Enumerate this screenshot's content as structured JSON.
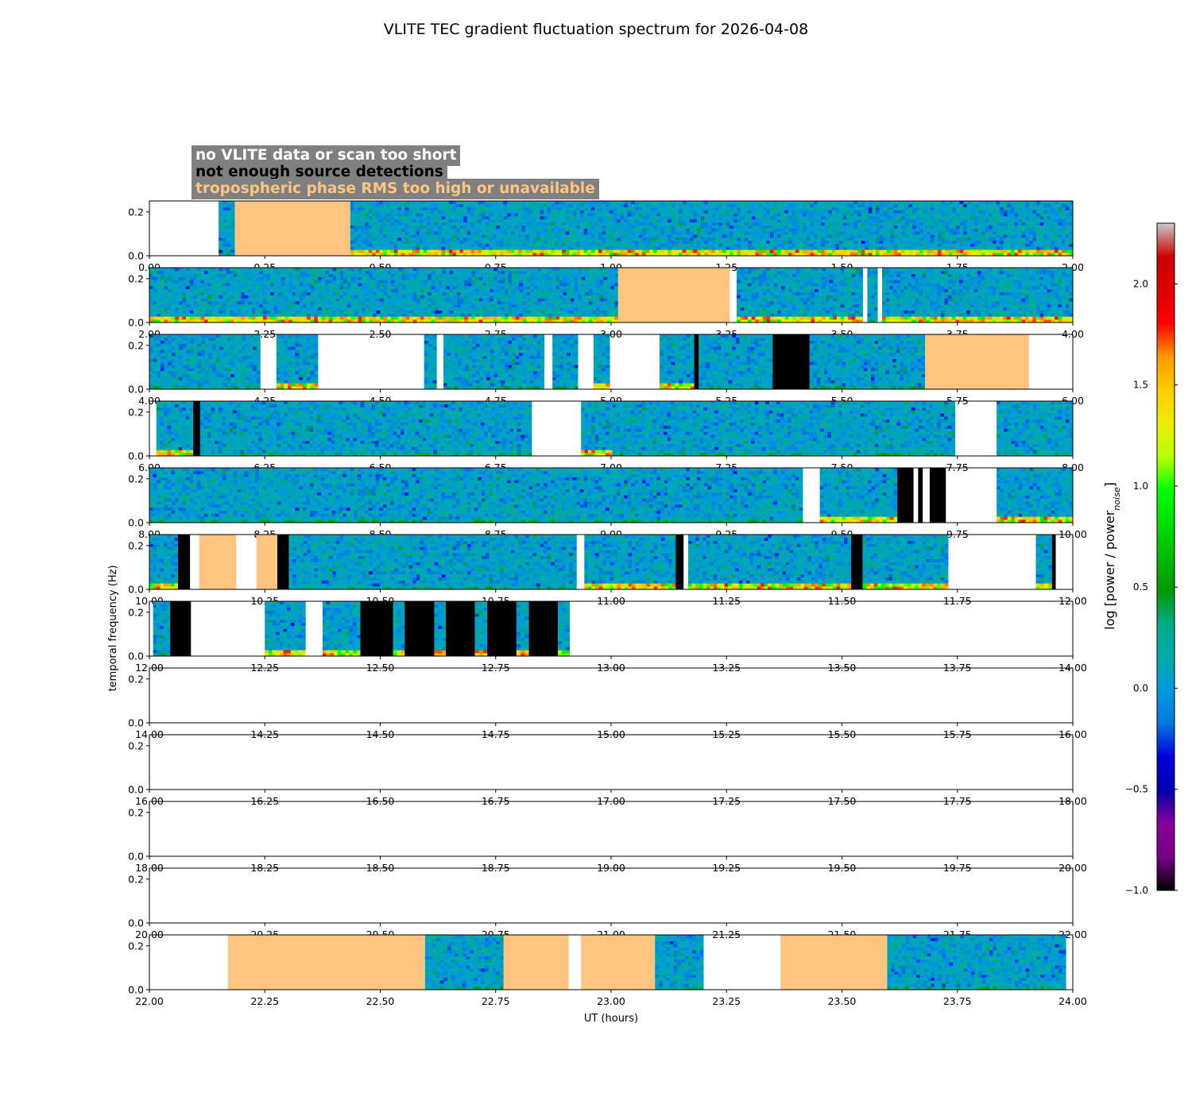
{
  "chart_data": {
    "type": "heatmap",
    "title": "VLITE TEC gradient fluctuation spectrum for 2026-04-08",
    "xlabel": "UT (hours)",
    "ylabel": "temporal frequency (Hz)",
    "yticks": [
      "0.0",
      "0.2"
    ],
    "ylim": [
      0,
      0.25
    ],
    "panels": [
      {
        "xlim": [
          0,
          2
        ],
        "xticks": [
          "0.00",
          "0.25",
          "0.50",
          "0.75",
          "1.00",
          "1.25",
          "1.50",
          "1.75",
          "2.00"
        ],
        "segments": [
          {
            "start": 0.15,
            "end": 0.185,
            "status": "data",
            "low_power": false
          },
          {
            "start": 0.185,
            "end": 0.435,
            "status": "tropo"
          },
          {
            "start": 0.435,
            "end": 2.0,
            "status": "data",
            "low_power": true
          }
        ]
      },
      {
        "xlim": [
          2,
          4
        ],
        "xticks": [
          "2.00",
          "2.25",
          "2.50",
          "2.75",
          "3.00",
          "3.25",
          "3.50",
          "3.75",
          "4.00"
        ],
        "segments": [
          {
            "start": 2.0,
            "end": 3.015,
            "status": "data",
            "low_power": true
          },
          {
            "start": 3.015,
            "end": 3.257,
            "status": "tropo"
          },
          {
            "start": 3.272,
            "end": 3.545,
            "status": "data",
            "low_power": true
          },
          {
            "start": 3.555,
            "end": 3.577,
            "status": "data",
            "low_power": false
          },
          {
            "start": 3.587,
            "end": 4.0,
            "status": "data",
            "low_power": true
          }
        ]
      },
      {
        "xlim": [
          4,
          6
        ],
        "xticks": [
          "4.00",
          "4.25",
          "4.50",
          "4.75",
          "5.00",
          "5.25",
          "5.50",
          "5.75",
          "6.00"
        ],
        "segments": [
          {
            "start": 4.0,
            "end": 4.24,
            "status": "data",
            "low_power": false
          },
          {
            "start": 4.275,
            "end": 4.365,
            "status": "data",
            "low_power": true
          },
          {
            "start": 4.595,
            "end": 4.622,
            "status": "data",
            "low_power": false
          },
          {
            "start": 4.637,
            "end": 4.855,
            "status": "data",
            "low_power": false
          },
          {
            "start": 4.873,
            "end": 4.928,
            "status": "data",
            "low_power": false
          },
          {
            "start": 4.962,
            "end": 4.997,
            "status": "data",
            "low_power": true
          },
          {
            "start": 5.105,
            "end": 5.18,
            "status": "data",
            "low_power": true
          },
          {
            "start": 5.18,
            "end": 5.19,
            "status": "nodet"
          },
          {
            "start": 5.19,
            "end": 5.35,
            "status": "data",
            "low_power": false
          },
          {
            "start": 5.35,
            "end": 5.43,
            "status": "nodet"
          },
          {
            "start": 5.43,
            "end": 5.68,
            "status": "data",
            "low_power": false
          },
          {
            "start": 5.68,
            "end": 5.905,
            "status": "tropo"
          }
        ]
      },
      {
        "xlim": [
          6,
          8
        ],
        "xticks": [
          "6.00",
          "6.25",
          "6.50",
          "6.75",
          "7.00",
          "7.25",
          "7.50",
          "7.75",
          "8.00"
        ],
        "segments": [
          {
            "start": 6.015,
            "end": 6.095,
            "status": "data",
            "low_power": true
          },
          {
            "start": 6.095,
            "end": 6.11,
            "status": "nodet"
          },
          {
            "start": 6.11,
            "end": 6.828,
            "status": "data",
            "low_power": false
          },
          {
            "start": 6.935,
            "end": 7.003,
            "status": "data",
            "low_power": true
          },
          {
            "start": 7.003,
            "end": 7.745,
            "status": "data",
            "low_power": false
          },
          {
            "start": 7.835,
            "end": 8.0,
            "status": "data",
            "low_power": false
          }
        ]
      },
      {
        "xlim": [
          8,
          10
        ],
        "xticks": [
          "8.00",
          "8.25",
          "8.50",
          "8.75",
          "9.00",
          "9.25",
          "9.50",
          "9.75",
          "10.00"
        ],
        "segments": [
          {
            "start": 8.0,
            "end": 9.415,
            "status": "data",
            "low_power": false
          },
          {
            "start": 9.452,
            "end": 9.62,
            "status": "data",
            "low_power": true
          },
          {
            "start": 9.62,
            "end": 9.655,
            "status": "nodet"
          },
          {
            "start": 9.665,
            "end": 9.675,
            "status": "nodet"
          },
          {
            "start": 9.69,
            "end": 9.725,
            "status": "nodet"
          },
          {
            "start": 9.835,
            "end": 10.0,
            "status": "data",
            "low_power": true
          }
        ]
      },
      {
        "xlim": [
          10,
          12
        ],
        "xticks": [
          "10.00",
          "10.25",
          "10.50",
          "10.75",
          "11.00",
          "11.25",
          "11.50",
          "11.75",
          "12.00"
        ],
        "segments": [
          {
            "start": 10.0,
            "end": 10.062,
            "status": "data",
            "low_power": true
          },
          {
            "start": 10.062,
            "end": 10.088,
            "status": "nodet"
          },
          {
            "start": 10.108,
            "end": 10.188,
            "status": "tropo"
          },
          {
            "start": 10.232,
            "end": 10.277,
            "status": "tropo"
          },
          {
            "start": 10.277,
            "end": 10.302,
            "status": "nodet"
          },
          {
            "start": 10.302,
            "end": 10.925,
            "status": "data",
            "low_power": false
          },
          {
            "start": 10.942,
            "end": 11.14,
            "status": "data",
            "low_power": true
          },
          {
            "start": 11.14,
            "end": 11.157,
            "status": "nodet"
          },
          {
            "start": 11.167,
            "end": 11.52,
            "status": "data",
            "low_power": true
          },
          {
            "start": 11.52,
            "end": 11.545,
            "status": "nodet"
          },
          {
            "start": 11.545,
            "end": 11.73,
            "status": "data",
            "low_power": true
          },
          {
            "start": 11.92,
            "end": 11.955,
            "status": "data",
            "low_power": true
          },
          {
            "start": 11.955,
            "end": 11.963,
            "status": "nodet"
          }
        ]
      },
      {
        "xlim": [
          12,
          14
        ],
        "xticks": [
          "12.00",
          "12.25",
          "12.50",
          "12.75",
          "13.00",
          "13.25",
          "13.50",
          "13.75",
          "14.00"
        ],
        "segments": [
          {
            "start": 12.008,
            "end": 12.045,
            "status": "data",
            "low_power": false
          },
          {
            "start": 12.045,
            "end": 12.09,
            "status": "nodet"
          },
          {
            "start": 12.25,
            "end": 12.338,
            "status": "data",
            "low_power": true
          },
          {
            "start": 12.375,
            "end": 12.457,
            "status": "data",
            "low_power": true
          },
          {
            "start": 12.457,
            "end": 12.528,
            "status": "nodet"
          },
          {
            "start": 12.528,
            "end": 12.553,
            "status": "data",
            "low_power": true
          },
          {
            "start": 12.553,
            "end": 12.617,
            "status": "nodet"
          },
          {
            "start": 12.617,
            "end": 12.642,
            "status": "data",
            "low_power": true
          },
          {
            "start": 12.642,
            "end": 12.705,
            "status": "nodet"
          },
          {
            "start": 12.705,
            "end": 12.732,
            "status": "data",
            "low_power": true
          },
          {
            "start": 12.732,
            "end": 12.795,
            "status": "nodet"
          },
          {
            "start": 12.795,
            "end": 12.822,
            "status": "data",
            "low_power": true
          },
          {
            "start": 12.822,
            "end": 12.885,
            "status": "nodet"
          },
          {
            "start": 12.885,
            "end": 12.91,
            "status": "data",
            "low_power": true
          }
        ]
      },
      {
        "xlim": [
          14,
          16
        ],
        "xticks": [
          "14.00",
          "14.25",
          "14.50",
          "14.75",
          "15.00",
          "15.25",
          "15.50",
          "15.75",
          "16.00"
        ],
        "segments": []
      },
      {
        "xlim": [
          16,
          18
        ],
        "xticks": [
          "16.00",
          "16.25",
          "16.50",
          "16.75",
          "17.00",
          "17.25",
          "17.50",
          "17.75",
          "18.00"
        ],
        "segments": []
      },
      {
        "xlim": [
          18,
          20
        ],
        "xticks": [
          "18.00",
          "18.25",
          "18.50",
          "18.75",
          "19.00",
          "19.25",
          "19.50",
          "19.75",
          "20.00"
        ],
        "segments": []
      },
      {
        "xlim": [
          20,
          22
        ],
        "xticks": [
          "20.00",
          "20.25",
          "20.50",
          "20.75",
          "21.00",
          "21.25",
          "21.50",
          "21.75",
          "22.00"
        ],
        "segments": []
      },
      {
        "xlim": [
          22,
          24
        ],
        "xticks": [
          "22.00",
          "22.25",
          "22.50",
          "22.75",
          "23.00",
          "23.25",
          "23.50",
          "23.75",
          "24.00"
        ],
        "segments": [
          {
            "start": 22.17,
            "end": 22.597,
            "status": "tropo"
          },
          {
            "start": 22.597,
            "end": 22.767,
            "status": "data",
            "low_power": false
          },
          {
            "start": 22.767,
            "end": 22.908,
            "status": "tropo"
          },
          {
            "start": 22.935,
            "end": 23.095,
            "status": "tropo"
          },
          {
            "start": 23.095,
            "end": 23.2,
            "status": "data",
            "low_power": false
          },
          {
            "start": 23.367,
            "end": 23.598,
            "status": "tropo"
          },
          {
            "start": 23.598,
            "end": 23.985,
            "status": "data",
            "low_power": false
          }
        ]
      }
    ],
    "legend": {
      "placement": "top-left",
      "entries": [
        {
          "label": "no VLITE data or scan too short",
          "status": "nodata",
          "color": "#ffffff"
        },
        {
          "label": "not enough source detections",
          "status": "nodet",
          "color": "#000000"
        },
        {
          "label": "tropospheric phase RMS too high or unavailable",
          "status": "tropo",
          "color": "#fdc57f"
        }
      ],
      "box_color": "#808080"
    },
    "colorbar": {
      "label_main": "log [power / power",
      "label_sub": "noise",
      "label_end": "]",
      "range": [
        -1.0,
        2.3
      ],
      "ticks": [
        "-1.0",
        "-0.5",
        "0.0",
        "0.5",
        "1.0",
        "1.5",
        "2.0"
      ],
      "tick_values": [
        -1.0,
        -0.5,
        0.0,
        0.5,
        1.0,
        1.5,
        2.0
      ],
      "colormap": "nipy_spectral"
    }
  }
}
